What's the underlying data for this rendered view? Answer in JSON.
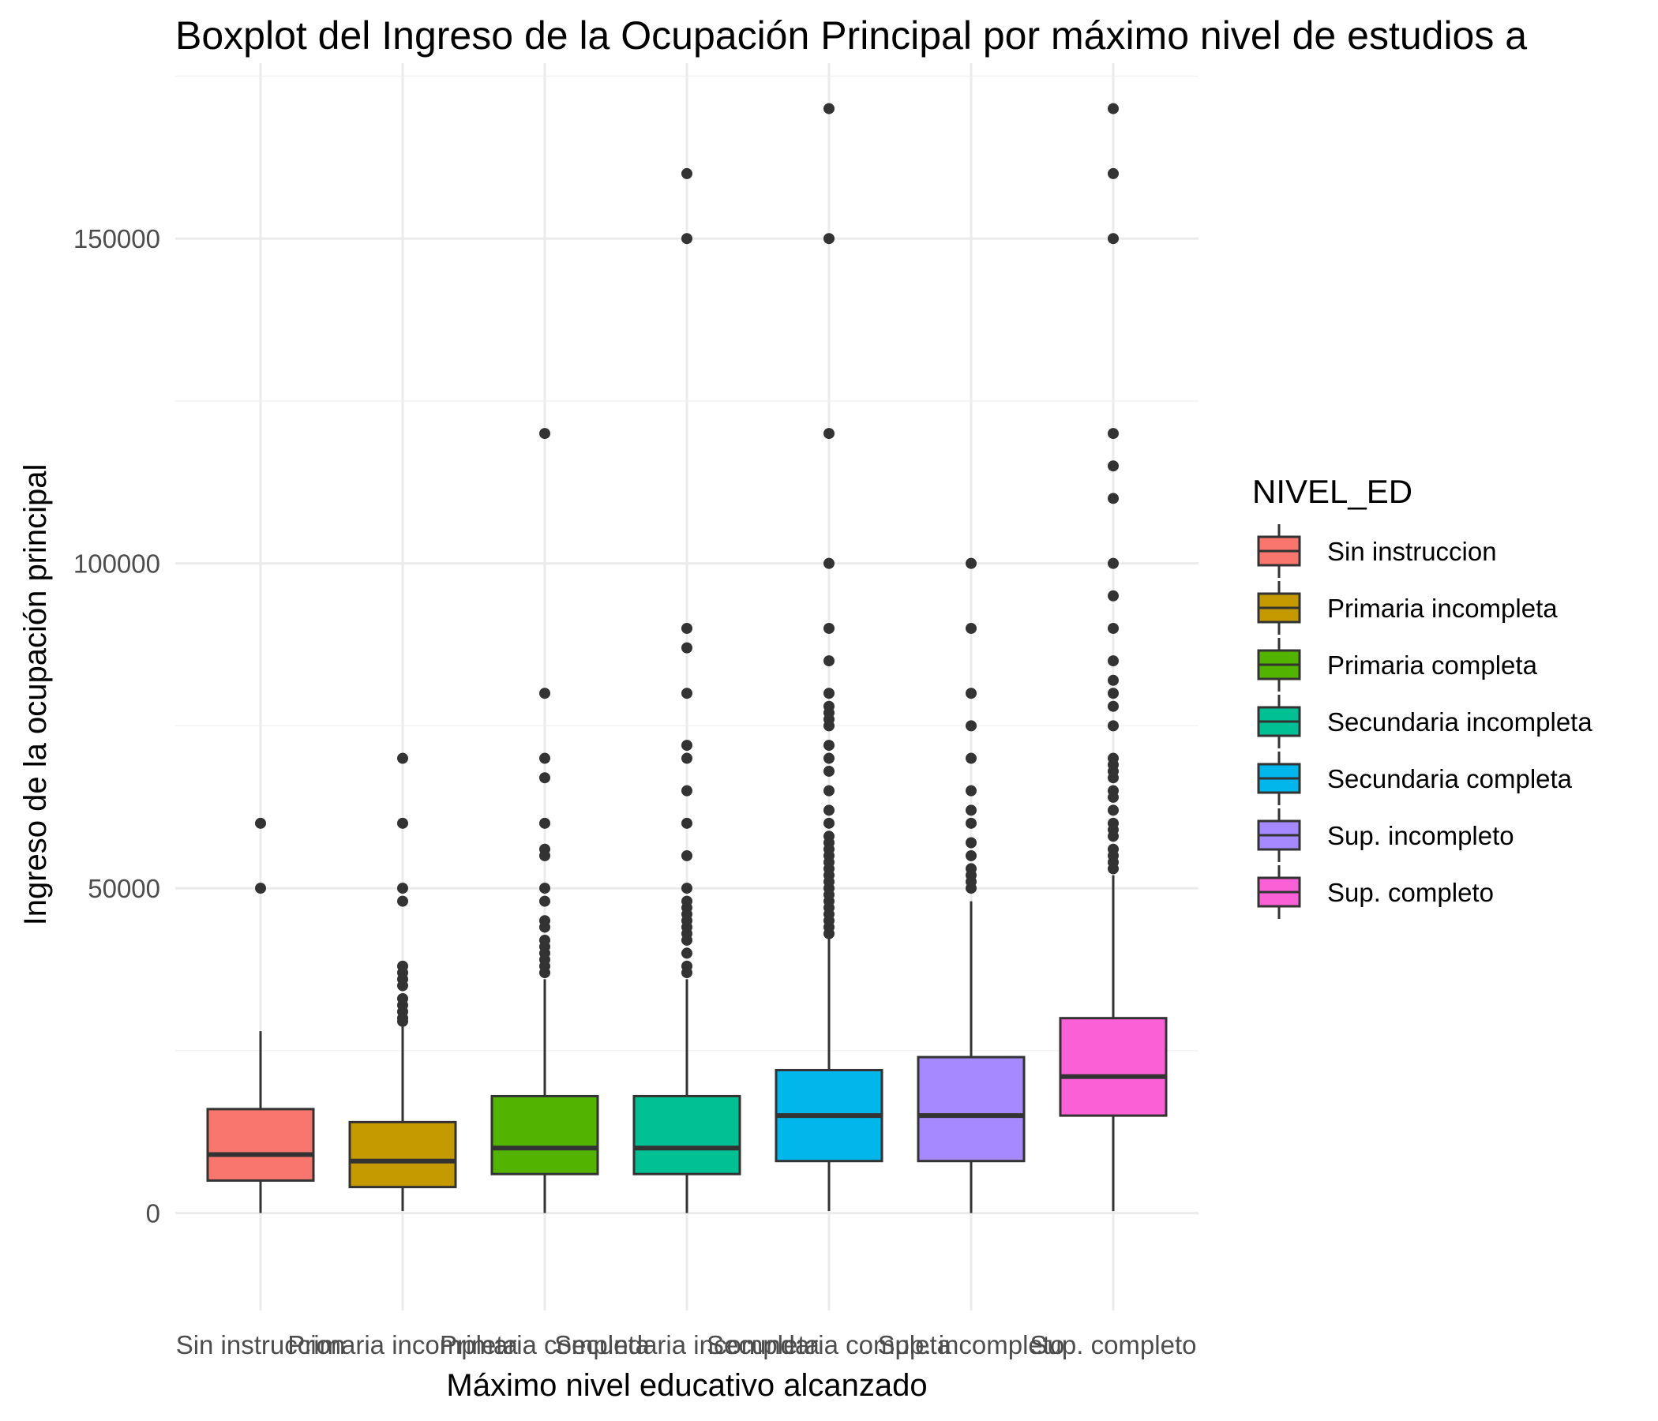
{
  "chart_data": {
    "type": "boxplot",
    "title": "Boxplot del Ingreso de la Ocupación Principal por máximo nivel de estudios a",
    "xlabel": "Máximo nivel educativo alcanzado",
    "ylabel": "Ingreso de la ocupación principal",
    "ylim": [
      -15000,
      177000
    ],
    "y_ticks": [
      0,
      50000,
      100000,
      150000
    ],
    "y_tick_labels": [
      "0",
      "50000",
      "100000",
      "150000"
    ],
    "grid": true,
    "legend": {
      "title": "NIVEL_ED",
      "position": "right"
    },
    "categories": [
      "Sin instruccion",
      "Primaria incompleta",
      "Primaria completa",
      "Secundaria incompleta",
      "Secundaria completa",
      "Sup. incompleto",
      "Sup. completo"
    ],
    "colors": [
      "#F8766D",
      "#C49A00",
      "#53B400",
      "#00C094",
      "#00B6EB",
      "#A58AFF",
      "#FB61D7"
    ],
    "series": [
      {
        "name": "Sin instruccion",
        "whisker_low": 0,
        "q1": 5000,
        "median": 9000,
        "q3": 16000,
        "whisker_high": 28000,
        "outliers": [
          50000,
          60000
        ]
      },
      {
        "name": "Primaria incompleta",
        "whisker_low": 300,
        "q1": 4000,
        "median": 8000,
        "q3": 14000,
        "whisker_high": 29000,
        "outliers": [
          29500,
          30000,
          31000,
          32000,
          33000,
          35000,
          36000,
          37000,
          38000,
          48000,
          50000,
          60000,
          70000
        ]
      },
      {
        "name": "Primaria completa",
        "whisker_low": 0,
        "q1": 6000,
        "median": 10000,
        "q3": 18000,
        "whisker_high": 36000,
        "outliers": [
          37000,
          38000,
          39000,
          40000,
          41000,
          42000,
          44000,
          45000,
          48000,
          50000,
          55000,
          56000,
          60000,
          67000,
          70000,
          80000,
          120000
        ]
      },
      {
        "name": "Secundaria incompleta",
        "whisker_low": 0,
        "q1": 6000,
        "median": 10000,
        "q3": 18000,
        "whisker_high": 36000,
        "outliers": [
          37000,
          38000,
          40000,
          42000,
          43000,
          44000,
          45000,
          46000,
          47000,
          48000,
          50000,
          55000,
          60000,
          65000,
          70000,
          72000,
          80000,
          87000,
          90000,
          150000,
          160000
        ]
      },
      {
        "name": "Secundaria completa",
        "whisker_low": 300,
        "q1": 8000,
        "median": 15000,
        "q3": 22000,
        "whisker_high": 43000,
        "outliers": [
          43000,
          44000,
          45000,
          46000,
          47000,
          48000,
          49000,
          50000,
          51000,
          52000,
          53000,
          54000,
          55000,
          56000,
          57000,
          58000,
          60000,
          62000,
          65000,
          68000,
          70000,
          72000,
          75000,
          76000,
          77000,
          78000,
          80000,
          85000,
          90000,
          100000,
          120000,
          150000,
          170000
        ]
      },
      {
        "name": "Sup. incompleto",
        "whisker_low": 0,
        "q1": 8000,
        "median": 15000,
        "q3": 24000,
        "whisker_high": 48000,
        "outliers": [
          50000,
          51000,
          52000,
          53000,
          55000,
          57000,
          60000,
          62000,
          65000,
          70000,
          75000,
          80000,
          90000,
          100000
        ]
      },
      {
        "name": "Sup. completo",
        "whisker_low": 300,
        "q1": 15000,
        "median": 21000,
        "q3": 30000,
        "whisker_high": 52000,
        "outliers": [
          53000,
          54000,
          55000,
          56000,
          58000,
          59000,
          60000,
          62000,
          64000,
          65000,
          67000,
          68000,
          69000,
          70000,
          75000,
          78000,
          80000,
          82000,
          85000,
          90000,
          95000,
          100000,
          110000,
          115000,
          120000,
          150000,
          160000,
          170000
        ]
      }
    ]
  }
}
